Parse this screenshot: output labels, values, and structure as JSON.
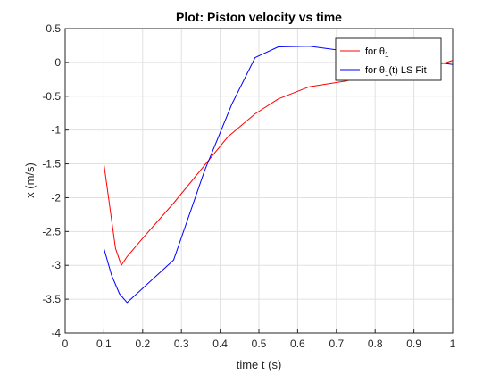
{
  "chart_data": {
    "type": "line",
    "title": "Plot: Piston velocity vs time",
    "xlabel": "time t (s)",
    "ylabel": "x (m/s)",
    "xlim": [
      0,
      1
    ],
    "ylim": [
      -4,
      0.5
    ],
    "xticks": [
      0,
      0.1,
      0.2,
      0.3,
      0.4,
      0.5,
      0.6,
      0.7,
      0.8,
      0.9,
      1
    ],
    "xtick_labels": [
      "0",
      "0.1",
      "0.2",
      "0.3",
      "0.4",
      "0.5",
      "0.6",
      "0.7",
      "0.8",
      "0.9",
      "1"
    ],
    "yticks": [
      0.5,
      0,
      -0.5,
      -1,
      -1.5,
      -2,
      -2.5,
      -3,
      -3.5,
      -4
    ],
    "ytick_labels": [
      "0.5",
      "0",
      "-0.5",
      "-1",
      "-1.5",
      "-2",
      "-2.5",
      "-3",
      "-3.5",
      "-4"
    ],
    "grid": true,
    "legend_position": "top-right",
    "series": [
      {
        "name": "for θ1",
        "legend_main": "for θ",
        "legend_sub": "1",
        "legend_suffix": "",
        "color": "#ff0000",
        "x": [
          0.1,
          0.13,
          0.145,
          0.16,
          0.2,
          0.28,
          0.36,
          0.42,
          0.49,
          0.55,
          0.63,
          0.72,
          0.8,
          0.87,
          0.93,
          0.98,
          1.0
        ],
        "y": [
          -1.5,
          -2.75,
          -3.0,
          -2.87,
          -2.6,
          -2.08,
          -1.52,
          -1.1,
          -0.76,
          -0.54,
          -0.36,
          -0.28,
          -0.18,
          -0.1,
          -0.05,
          -0.01,
          0.03
        ]
      },
      {
        "name": "for θ1(t) LS Fit",
        "legend_main": "for θ",
        "legend_sub": "1",
        "legend_suffix": "(t) LS Fit",
        "color": "#0000ff",
        "x": [
          0.1,
          0.12,
          0.14,
          0.16,
          0.28,
          0.36,
          0.43,
          0.49,
          0.55,
          0.63,
          0.72,
          0.8,
          0.9,
          0.96,
          1.0
        ],
        "y": [
          -2.75,
          -3.15,
          -3.42,
          -3.55,
          -2.92,
          -1.6,
          -0.62,
          0.07,
          0.23,
          0.24,
          0.17,
          0.1,
          0.02,
          0.0,
          -0.03
        ]
      }
    ]
  }
}
